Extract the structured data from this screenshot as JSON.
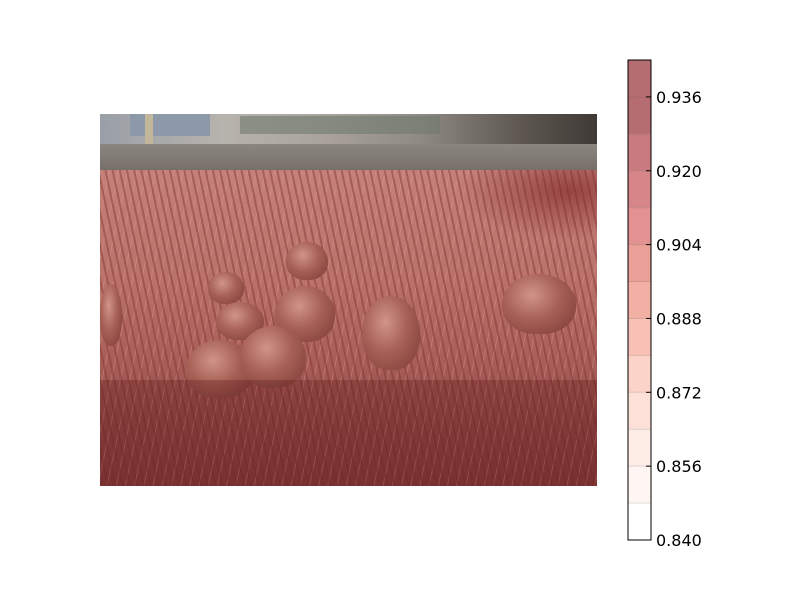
{
  "chart_data": {
    "type": "heatmap",
    "title": "",
    "xlabel": "",
    "ylabel": "",
    "colorbar": {
      "vmin": 0.84,
      "vmax": 0.944,
      "levels": [
        0.84,
        0.848,
        0.856,
        0.864,
        0.872,
        0.88,
        0.888,
        0.896,
        0.904,
        0.912,
        0.92,
        0.928,
        0.936,
        0.944
      ],
      "tick_values": [
        0.84,
        0.856,
        0.872,
        0.888,
        0.904,
        0.92,
        0.936
      ],
      "tick_labels": [
        "0.840",
        "0.856",
        "0.872",
        "0.888",
        "0.904",
        "0.920",
        "0.936"
      ],
      "colors": [
        "#ffffff",
        "#fff5f2",
        "#feece6",
        "#fde1d8",
        "#fbd3c8",
        "#f7c2b5",
        "#f2afa3",
        "#eaa096",
        "#e29290",
        "#d68688",
        "#c87a7e",
        "#b66d72"
      ],
      "orientation": "vertical",
      "placement": "right"
    },
    "overlay_bands": [
      {
        "row_range": [
          0.0,
          0.15
        ],
        "value": 0.84
      },
      {
        "row_range": [
          0.15,
          0.71
        ],
        "value": 0.912
      },
      {
        "row_range": [
          0.71,
          1.0
        ],
        "value": 0.944
      }
    ],
    "background": "photograph of sparrows in dry grass"
  }
}
